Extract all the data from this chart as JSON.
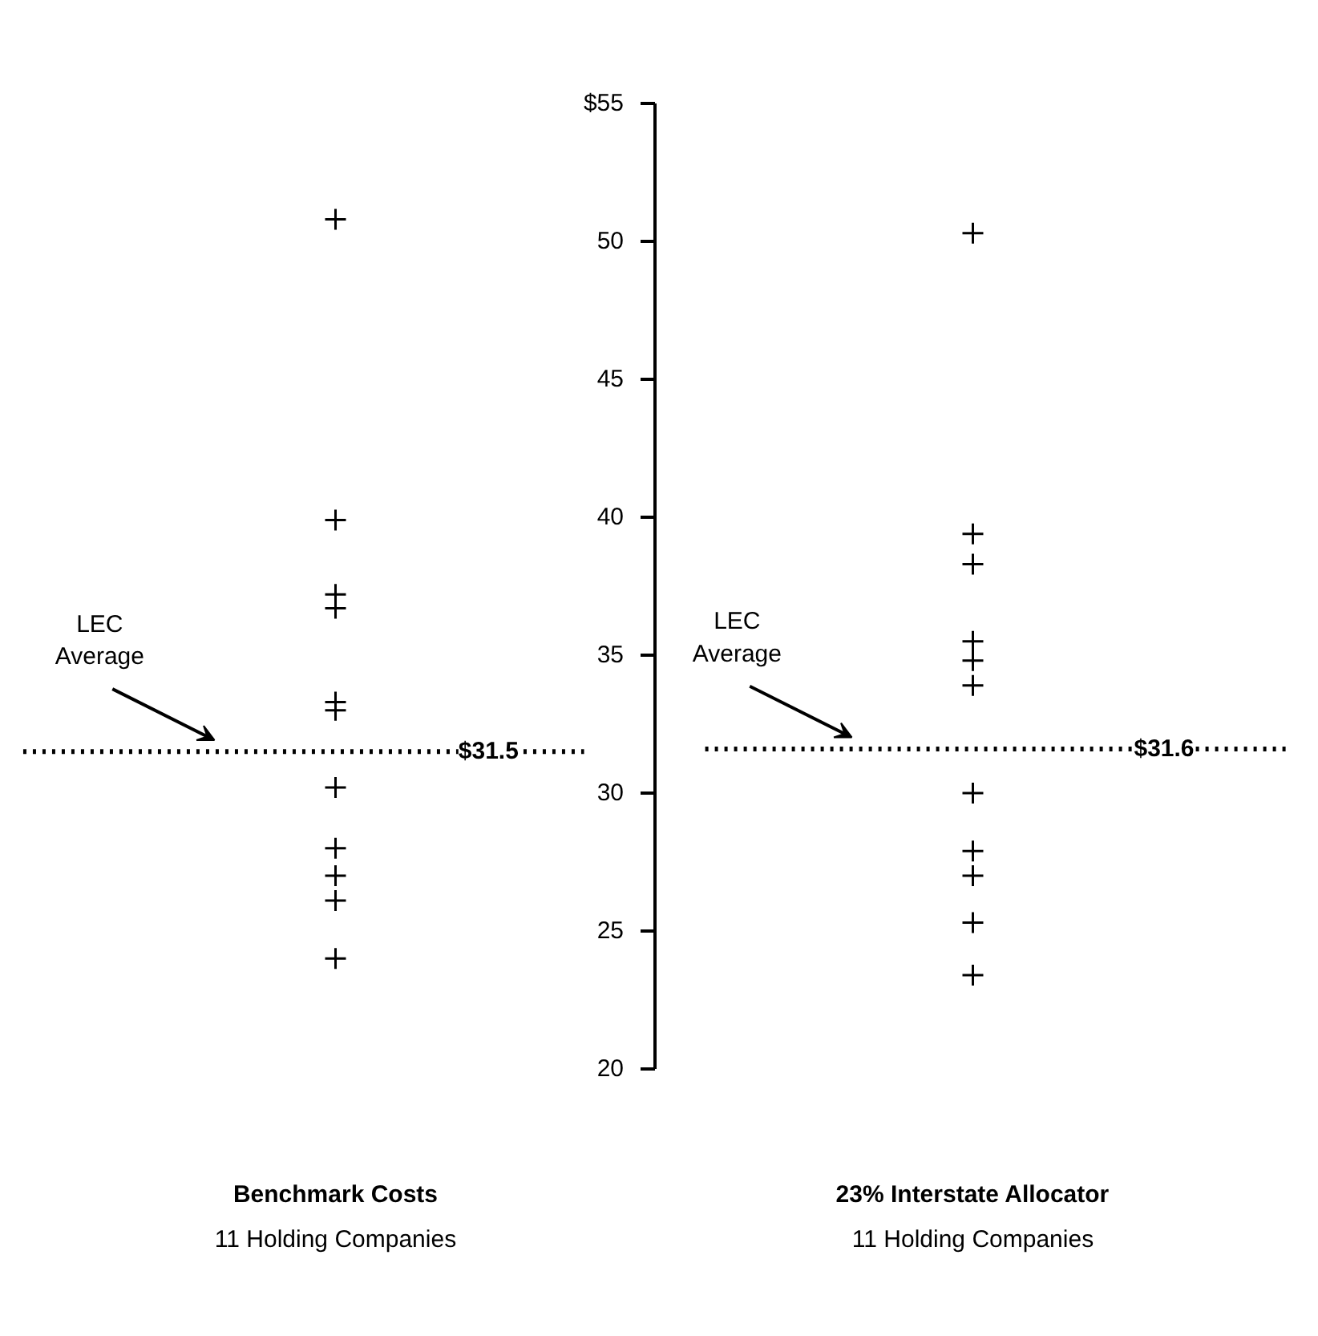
{
  "chart_data": {
    "type": "scatter",
    "marker": "cross",
    "grid": false,
    "categories": [
      "Benchmark Costs",
      "23% Interstate Allocator"
    ],
    "series": [
      {
        "color": "#000000",
        "x": [
          "Benchmark Costs",
          "Benchmark Costs",
          "Benchmark Costs",
          "Benchmark Costs",
          "Benchmark Costs",
          "Benchmark Costs",
          "Benchmark Costs",
          "Benchmark Costs",
          "Benchmark Costs",
          "Benchmark Costs",
          "Benchmark Costs"
        ],
        "values": [
          50.8,
          39.9,
          37.2,
          36.7,
          33.3,
          33.0,
          30.2,
          28.0,
          27.0,
          26.1,
          24.0
        ]
      },
      {
        "color": "#000000",
        "x": [
          "23% Interstate Allocator",
          "23% Interstate Allocator",
          "23% Interstate Allocator",
          "23% Interstate Allocator",
          "23% Interstate Allocator",
          "23% Interstate Allocator",
          "23% Interstate Allocator",
          "23% Interstate Allocator",
          "23% Interstate Allocator",
          "23% Interstate Allocator",
          "23% Interstate Allocator"
        ],
        "values": [
          50.3,
          39.4,
          38.3,
          35.5,
          34.8,
          33.9,
          30.0,
          27.9,
          27.0,
          25.3,
          23.4
        ]
      }
    ],
    "ylim": [
      20,
      55
    ],
    "yticks": [
      {
        "value": 55,
        "label": "$55"
      },
      50,
      45,
      40,
      35,
      30,
      25,
      20
    ],
    "ref_lines": [
      {
        "axis": "y",
        "value": 31.5,
        "label": "$31.5",
        "line_style": "dotted"
      },
      {
        "axis": "y",
        "value": 31.6,
        "label": "$31.6",
        "line_style": "dotted"
      }
    ],
    "annotations": [
      "11 Holding Companies",
      "11 Holding Companies",
      "LEC Average",
      "LEC Average"
    ]
  }
}
